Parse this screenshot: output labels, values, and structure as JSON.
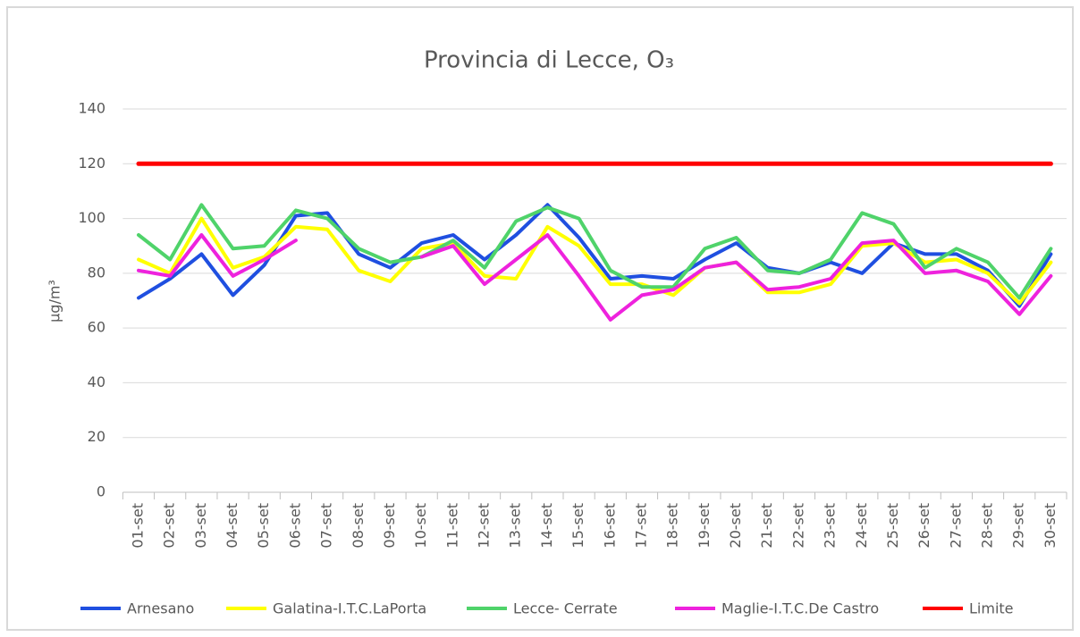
{
  "chart_data": {
    "type": "line",
    "title": "Provincia di Lecce, O₃",
    "y_label": "µg/m³",
    "categories": [
      "01-set",
      "02-set",
      "03-set",
      "04-set",
      "05-set",
      "06-set",
      "07-set",
      "08-set",
      "09-set",
      "10-set",
      "11-set",
      "12-set",
      "13-set",
      "14-set",
      "15-set",
      "16-set",
      "17-set",
      "18-set",
      "19-set",
      "20-set",
      "21-set",
      "22-set",
      "23-set",
      "24-set",
      "25-set",
      "26-set",
      "27-set",
      "28-set",
      "29-set",
      "30-set"
    ],
    "series": [
      {
        "name": "Arnesano",
        "color": "#1f4fe0",
        "values": [
          71,
          78,
          87,
          72,
          83,
          101,
          102,
          87,
          82,
          91,
          94,
          85,
          94,
          105,
          93,
          78,
          79,
          78,
          85,
          91,
          82,
          80,
          84,
          80,
          91,
          87,
          87,
          81,
          68,
          87
        ]
      },
      {
        "name": "Galatina-I.T.C.LaPorta",
        "color": "#ffff00",
        "values": [
          85,
          80,
          100,
          82,
          86,
          97,
          96,
          81,
          77,
          89,
          91,
          79,
          78,
          97,
          90,
          76,
          76,
          72,
          82,
          84,
          73,
          73,
          76,
          90,
          91,
          84,
          85,
          80,
          69,
          84
        ]
      },
      {
        "name": "Lecce- Cerrate",
        "color": "#4fd36a",
        "values": [
          94,
          85,
          105,
          89,
          90,
          103,
          100,
          89,
          84,
          86,
          92,
          82,
          99,
          104,
          100,
          81,
          75,
          75,
          89,
          93,
          81,
          80,
          85,
          102,
          98,
          82,
          89,
          84,
          71,
          89
        ]
      },
      {
        "name": "Maglie-I.T.C.De Castro",
        "color": "#ee22dd",
        "values": [
          81,
          79,
          94,
          79,
          85,
          92,
          null,
          null,
          null,
          86,
          90,
          76,
          85,
          94,
          79,
          63,
          72,
          74,
          82,
          84,
          74,
          75,
          78,
          91,
          92,
          80,
          81,
          77,
          65,
          79
        ]
      },
      {
        "name": "Limite",
        "color": "#ff0000",
        "values": [
          120,
          120,
          120,
          120,
          120,
          120,
          120,
          120,
          120,
          120,
          120,
          120,
          120,
          120,
          120,
          120,
          120,
          120,
          120,
          120,
          120,
          120,
          120,
          120,
          120,
          120,
          120,
          120,
          120,
          120
        ]
      }
    ],
    "ylim": [
      0,
      140
    ],
    "yticks": [
      0,
      20,
      40,
      60,
      80,
      100,
      120,
      140
    ],
    "grid": true,
    "legend": "bottom"
  }
}
